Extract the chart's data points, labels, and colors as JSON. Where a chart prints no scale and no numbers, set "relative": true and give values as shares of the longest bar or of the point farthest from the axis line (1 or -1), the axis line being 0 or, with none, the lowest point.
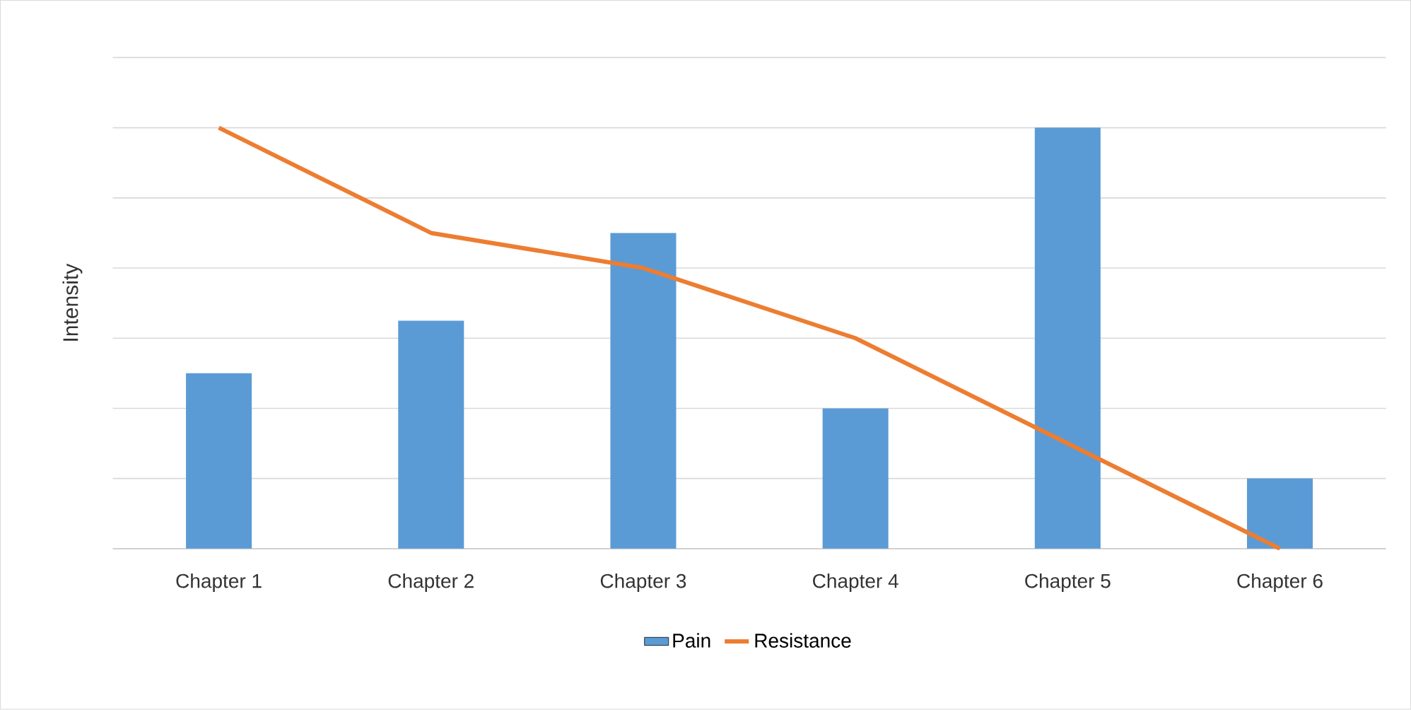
{
  "chart_data": {
    "type": "bar",
    "ylabel": "Intensity",
    "relative": true,
    "grid": "y",
    "legend": "bottom",
    "categories": [
      "Chapter 1",
      "Chapter 2",
      "Chapter 3",
      "Chapter 4",
      "Chapter 5",
      "Chapter 6"
    ],
    "series": [
      {
        "name": "Pain",
        "color": "#5b9bd5",
        "values": [
          0.4167,
          0.5417,
          0.75,
          0.3333,
          1,
          0.1667
        ]
      },
      {
        "name": "Resistance",
        "type": "line",
        "color": "#ed7d31",
        "values": [
          1,
          0.75,
          0.6667,
          0.5,
          0.25,
          0
        ]
      }
    ]
  }
}
